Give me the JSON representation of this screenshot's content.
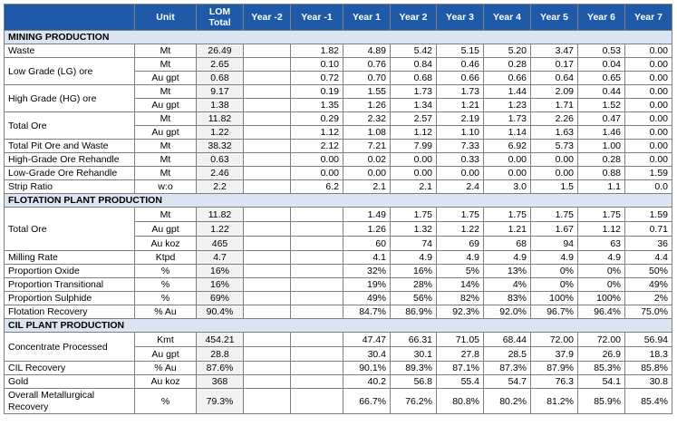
{
  "headers": [
    "",
    "Unit",
    "LOM",
    "Total",
    "Year -2",
    "Year -1",
    "Year 1",
    "Year 2",
    "Year 3",
    "Year 4",
    "Year 5",
    "Year 6",
    "Year 7"
  ],
  "sections": {
    "mining": "MINING PRODUCTION",
    "flotation": "FLOTATION PLANT PRODUCTION",
    "cil": "CIL PLANT PRODUCTION"
  },
  "mining": {
    "waste": {
      "label": "Waste",
      "unit": "Mt",
      "lom": "26.49",
      "v": [
        "",
        "1.82",
        "4.89",
        "5.42",
        "5.15",
        "5.20",
        "3.47",
        "0.53",
        "0.00"
      ]
    },
    "lg": {
      "label": "Low Grade (LG) ore",
      "unit1": "Mt",
      "lom1": "2.65",
      "v1": [
        "",
        "0.10",
        "0.76",
        "0.84",
        "0.46",
        "0.28",
        "0.17",
        "0.04",
        "0.00"
      ],
      "unit2": "Au gpt",
      "lom2": "0.68",
      "v2": [
        "",
        "0.72",
        "0.70",
        "0.68",
        "0.66",
        "0.66",
        "0.64",
        "0.65",
        "0.00"
      ]
    },
    "hg": {
      "label": "High Grade (HG) ore",
      "unit1": "Mt",
      "lom1": "9.17",
      "v1": [
        "",
        "0.19",
        "1.55",
        "1.73",
        "1.73",
        "1.44",
        "2.09",
        "0.44",
        "0.00"
      ],
      "unit2": "Au gpt",
      "lom2": "1.38",
      "v2": [
        "",
        "1.35",
        "1.26",
        "1.34",
        "1.21",
        "1.23",
        "1.71",
        "1.52",
        "0.00"
      ]
    },
    "total_ore": {
      "label": "Total Ore",
      "unit1": "Mt",
      "lom1": "11.82",
      "v1": [
        "",
        "0.29",
        "2.32",
        "2.57",
        "2.19",
        "1.73",
        "2.26",
        "0.47",
        "0.00"
      ],
      "unit2": "Au gpt",
      "lom2": "1.22",
      "v2": [
        "",
        "1.12",
        "1.08",
        "1.12",
        "1.10",
        "1.14",
        "1.63",
        "1.46",
        "0.00"
      ]
    },
    "total_pit": {
      "label": "Total Pit Ore and Waste",
      "unit": "Mt",
      "lom": "38.32",
      "v": [
        "",
        "2.12",
        "7.21",
        "7.99",
        "7.33",
        "6.92",
        "5.73",
        "1.00",
        "0.00"
      ]
    },
    "hg_rehandle": {
      "label": "High-Grade Ore Rehandle",
      "unit": "Mt",
      "lom": "0.63",
      "v": [
        "",
        "0.00",
        "0.02",
        "0.00",
        "0.33",
        "0.00",
        "0.00",
        "0.28",
        "0.00"
      ]
    },
    "lg_rehandle": {
      "label": "Low-Grade Ore Rehandle",
      "unit": "Mt",
      "lom": "2.46",
      "v": [
        "",
        "0.00",
        "0.00",
        "0.00",
        "0.00",
        "0.00",
        "0.00",
        "0.88",
        "1.59"
      ]
    },
    "strip": {
      "label": "Strip Ratio",
      "unit": "w:o",
      "lom": "2.2",
      "v": [
        "",
        "6.2",
        "2.1",
        "2.1",
        "2.4",
        "3.0",
        "1.5",
        "1.1",
        "0.0"
      ]
    }
  },
  "flotation": {
    "total_ore": {
      "label": "Total Ore",
      "unit1": "Mt",
      "lom1": "11.82",
      "v1": [
        "",
        "",
        "1.49",
        "1.75",
        "1.75",
        "1.75",
        "1.75",
        "1.75",
        "1.59"
      ],
      "unit2": "Au gpt",
      "lom2": "1.22",
      "v2": [
        "",
        "",
        "1.26",
        "1.32",
        "1.22",
        "1.21",
        "1.67",
        "1.12",
        "0.71"
      ],
      "unit3": "Au koz",
      "lom3": "465",
      "v3": [
        "",
        "",
        "60",
        "74",
        "69",
        "68",
        "94",
        "63",
        "36"
      ]
    },
    "milling": {
      "label": "Milling Rate",
      "unit": "Ktpd",
      "lom": "4.7",
      "v": [
        "",
        "",
        "4.1",
        "4.9",
        "4.9",
        "4.9",
        "4.9",
        "4.9",
        "4.4"
      ]
    },
    "proportion": {
      "label1": "Proportion Oxide",
      "unit1": "%",
      "lom1": "16%",
      "v1": [
        "",
        "",
        "32%",
        "16%",
        "5%",
        "13%",
        "0%",
        "0%",
        "50%"
      ],
      "label2": "Proportion Transitional",
      "unit2": "%",
      "lom2": "16%",
      "v2": [
        "",
        "",
        "19%",
        "28%",
        "14%",
        "4%",
        "0%",
        "0%",
        "49%"
      ],
      "label3": "Proportion Sulphide",
      "unit3": "%",
      "lom3": "69%",
      "v3": [
        "",
        "",
        "49%",
        "56%",
        "82%",
        "83%",
        "100%",
        "100%",
        "2%"
      ]
    },
    "recovery": {
      "label": "Flotation Recovery",
      "unit": "% Au",
      "lom": "90.4%",
      "v": [
        "",
        "",
        "84.7%",
        "86.9%",
        "92.3%",
        "92.0%",
        "96.7%",
        "96.4%",
        "75.0%"
      ]
    }
  },
  "cil": {
    "concentrate": {
      "label": "Concentrate Processed",
      "unit1": "Kmt",
      "lom1": "454.21",
      "v1": [
        "",
        "",
        "47.47",
        "66.31",
        "71.05",
        "68.44",
        "72.00",
        "72.00",
        "56.94"
      ],
      "unit2": "Au gpt",
      "lom2": "28.8",
      "v2": [
        "",
        "",
        "30.4",
        "30.1",
        "27.8",
        "28.5",
        "37.9",
        "26.9",
        "18.3"
      ]
    },
    "recovery": {
      "label": "CIL Recovery",
      "unit": "% Au",
      "lom": "87.6%",
      "v": [
        "",
        "",
        "90.1%",
        "89.3%",
        "87.1%",
        "87.3%",
        "87.9%",
        "85.3%",
        "85.8%"
      ]
    },
    "gold": {
      "label": "Gold",
      "unit": "Au koz",
      "lom": "368",
      "v": [
        "",
        "",
        "40.2",
        "56.8",
        "55.4",
        "54.7",
        "76.3",
        "54.1",
        "30.8"
      ]
    },
    "overall": {
      "label1": "Overall Metallurgical",
      "label2": "Recovery",
      "unit": "%",
      "lom": "79.3%",
      "v": [
        "",
        "",
        "66.7%",
        "76.2%",
        "80.8%",
        "80.2%",
        "81.2%",
        "85.9%",
        "85.4%"
      ]
    }
  }
}
